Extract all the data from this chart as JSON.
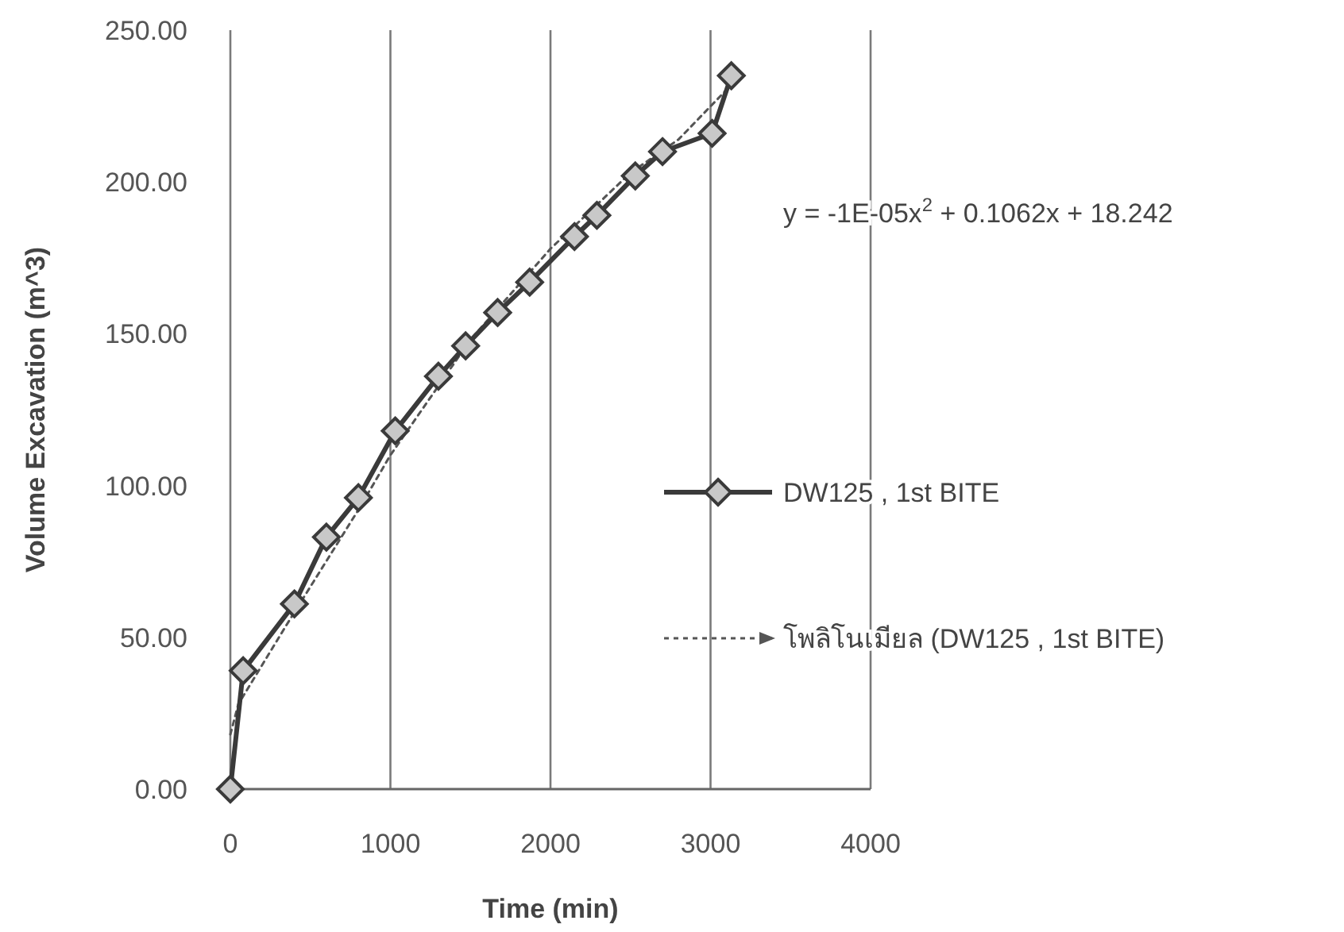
{
  "chart_data": {
    "type": "line",
    "xlabel": "Time (min)",
    "ylabel": "Volume Excavation (m^3)",
    "xlim": [
      0,
      4000
    ],
    "xticks": [
      0,
      1000,
      2000,
      3000,
      4000
    ],
    "ylim": [
      0,
      250
    ],
    "yticks": [
      {
        "value": 0,
        "label": "0.00"
      },
      {
        "value": 50,
        "label": "50.00"
      },
      {
        "value": 100,
        "label": "100.00"
      },
      {
        "value": 150,
        "label": "150.00"
      },
      {
        "value": 200,
        "label": "200.00"
      },
      {
        "value": 250,
        "label": "250.00"
      }
    ],
    "grid": "x",
    "legend": "right",
    "annotations": [
      "y = -1E-05x$^{2}$ + 0.1062x + 18.242"
    ],
    "series": [
      {
        "name": "DW125 , 1st BITE",
        "color": "#3a3a3a",
        "marker": "diamond",
        "line_style": "solid",
        "x": [
          0,
          80,
          400,
          600,
          800,
          1030,
          1300,
          1470,
          1670,
          1870,
          2150,
          2290,
          2530,
          2700,
          3010,
          3130
        ],
        "values": [
          0,
          39,
          61,
          83,
          96,
          118,
          136,
          146,
          157,
          167,
          182,
          189,
          202,
          210,
          216,
          235
        ]
      },
      {
        "name": "โพลิโนเมียล (DW125 , 1st BITE)",
        "color": "#555555",
        "marker": "none",
        "line_style": "dotted",
        "x": [
          0,
          50,
          350,
          800,
          1000,
          1500,
          2000,
          2500,
          2800,
          3130
        ],
        "values": [
          18,
          28,
          54,
          92,
          110,
          148,
          178,
          203,
          214,
          232
        ]
      }
    ]
  }
}
